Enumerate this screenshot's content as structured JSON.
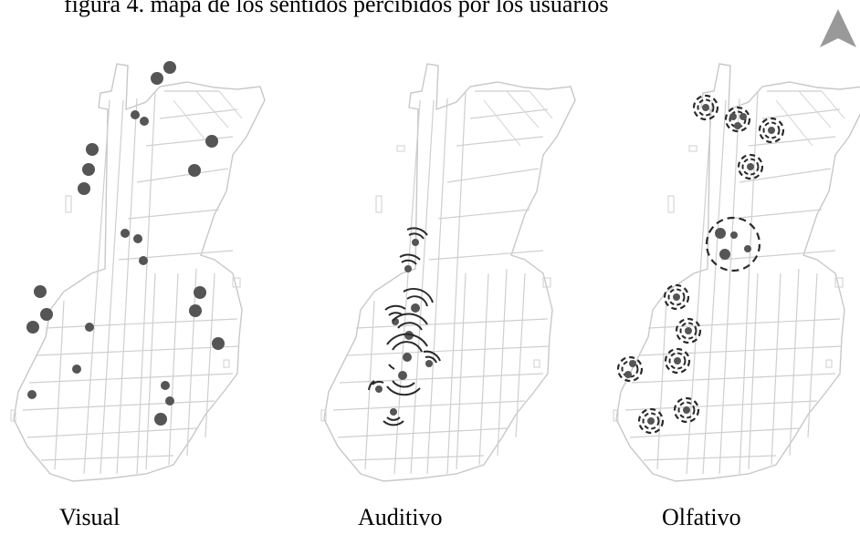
{
  "header": {
    "partial_text": "figura 4. mapa de los sentidos percibidos por los usuarios"
  },
  "panels": [
    {
      "id": "visual",
      "label": "Visual"
    },
    {
      "id": "auditivo",
      "label": "Auditivo"
    },
    {
      "id": "olfativo",
      "label": "Olfativo"
    }
  ],
  "north_arrow": {
    "icon": "north-arrow-icon"
  },
  "colors": {
    "street": "#c8c8c8",
    "marker": "#555555",
    "ring": "#2a2a2a",
    "arrow": "#999999"
  }
}
